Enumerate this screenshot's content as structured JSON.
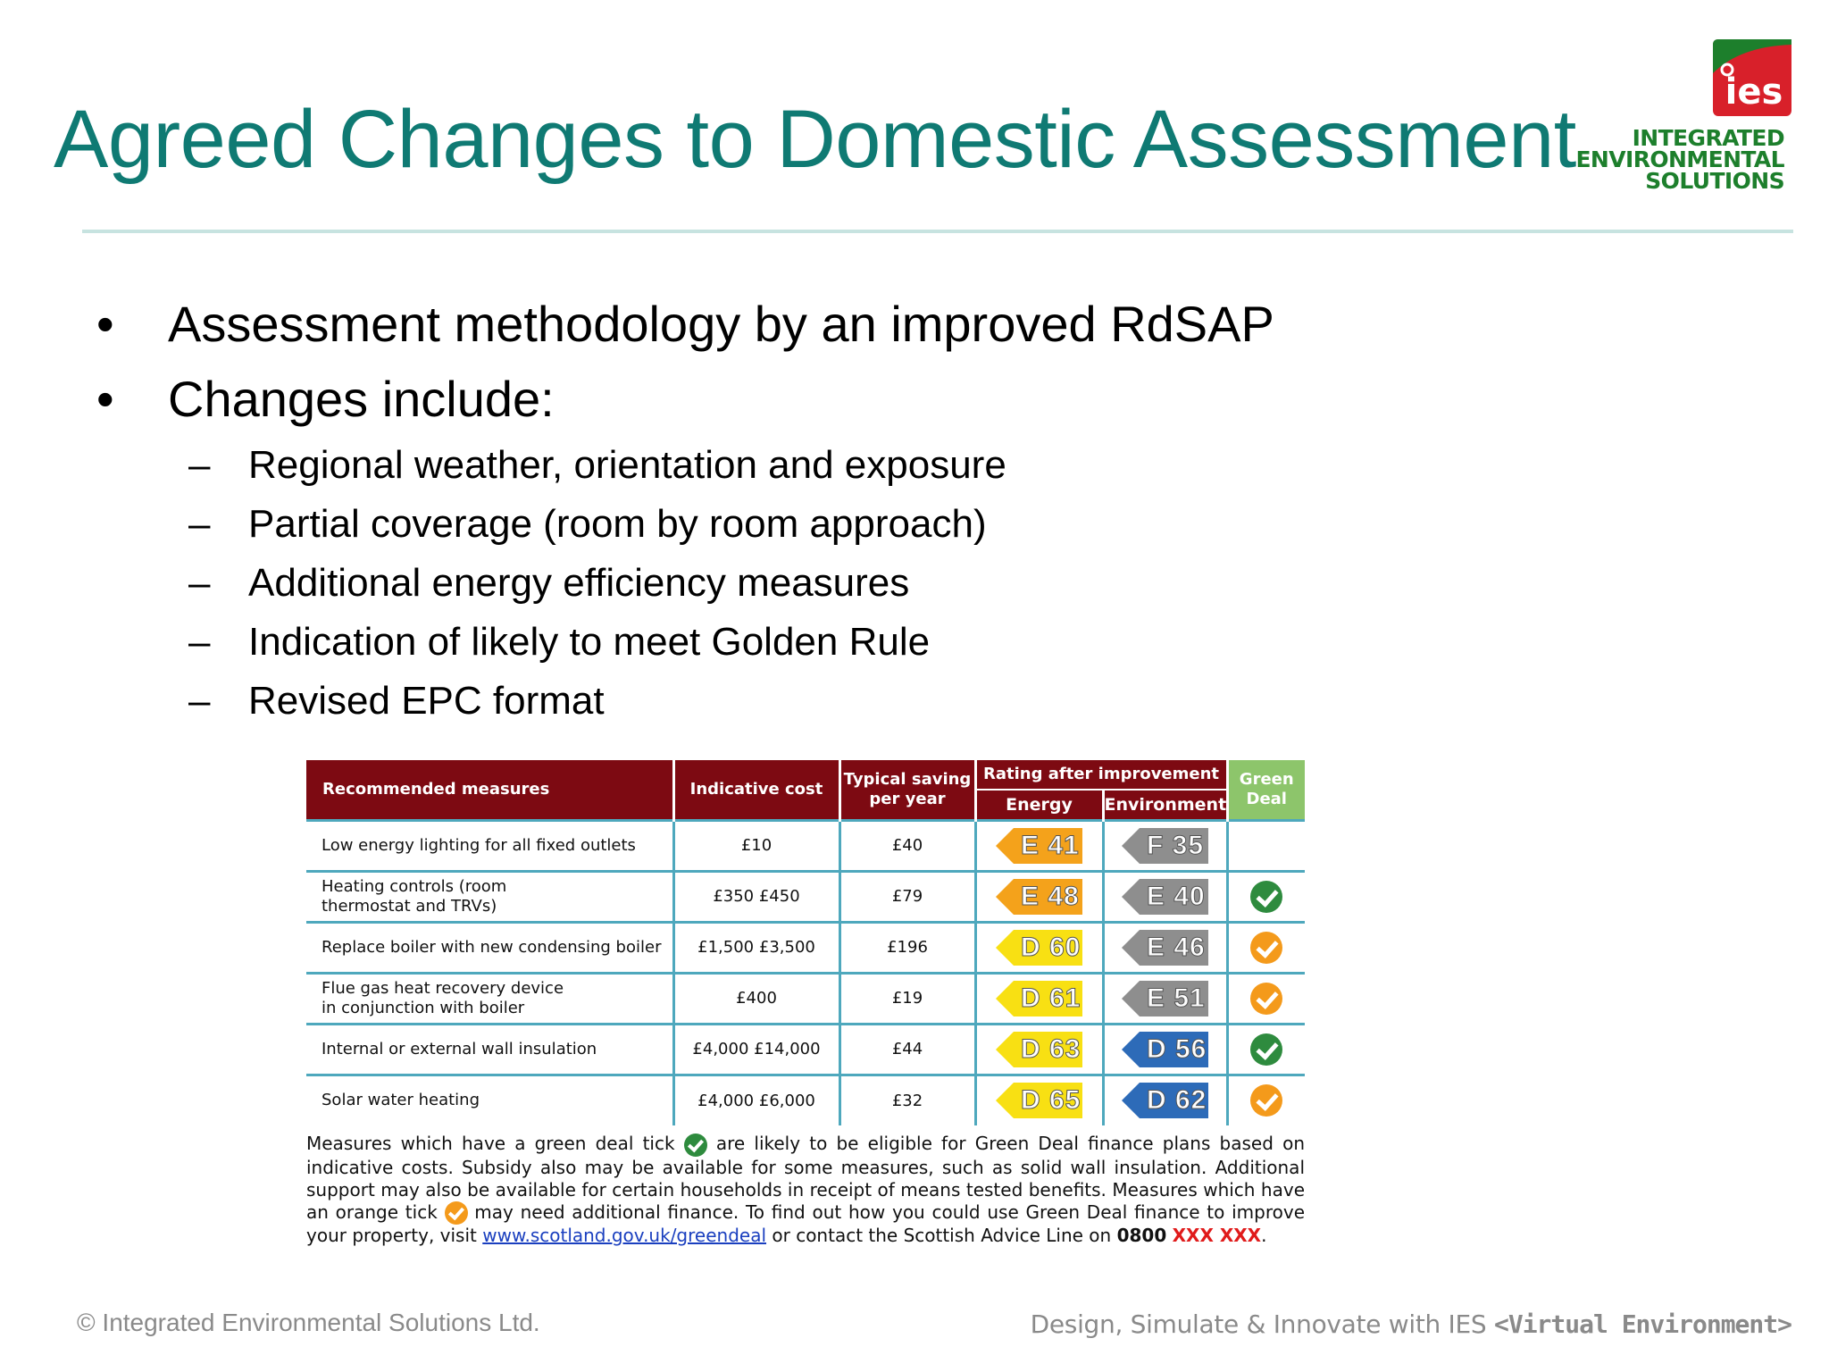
{
  "slide": {
    "title": "Agreed Changes to Domestic Assessment",
    "bullets": [
      "Assessment methodology by an improved RdSAP",
      "Changes include:"
    ],
    "sub_bullets": [
      "Regional weather, orientation and exposure",
      "Partial coverage (room by room approach)",
      "Additional energy efficiency measures",
      "Indication of likely to meet Golden Rule",
      "Revised EPC format"
    ],
    "bullet_glyph": "•",
    "dash_glyph": "–"
  },
  "logo": {
    "mark_text": "ies",
    "line1": "INTEGRATED",
    "line2": "ENVIRONMENTAL",
    "line3": "SOLUTIONS",
    "colors": {
      "red": "#d8202a",
      "green": "#1d7f2c"
    }
  },
  "epc_table": {
    "headers": {
      "measures": "Recommended measures",
      "cost": "Indicative cost",
      "saving_line1": "Typical saving",
      "saving_line2": "per year",
      "rating": "Rating after improvement",
      "energy": "Energy",
      "environment": "Environment",
      "green_line1": "Green",
      "green_line2": "Deal"
    },
    "rows": [
      {
        "measure_line1": "Low energy lighting for all fixed outlets",
        "measure_line2": "",
        "cost": "£10",
        "saving": "£40",
        "energy": "E 41",
        "energy_color": "orange",
        "environment": "F 35",
        "environment_color": "grey",
        "green_deal": "none"
      },
      {
        "measure_line1": "Heating controls (room",
        "measure_line2": "thermostat and TRVs)",
        "cost": "£350  £450",
        "saving": "£79",
        "energy": "E 48",
        "energy_color": "orange",
        "environment": "E 40",
        "environment_color": "grey",
        "green_deal": "green"
      },
      {
        "measure_line1": "Replace boiler with new condensing boiler",
        "measure_line2": "",
        "cost": "£1,500  £3,500",
        "saving": "£196",
        "energy": "D 60",
        "energy_color": "yellow",
        "environment": "E 46",
        "environment_color": "grey",
        "green_deal": "orange"
      },
      {
        "measure_line1": "Flue gas heat recovery device",
        "measure_line2": "in conjunction with boiler",
        "cost": "£400",
        "saving": "£19",
        "energy": "D 61",
        "energy_color": "yellow",
        "environment": "E 51",
        "environment_color": "grey",
        "green_deal": "orange"
      },
      {
        "measure_line1": "Internal or external wall insulation",
        "measure_line2": "",
        "cost": "£4,000  £14,000",
        "saving": "£44",
        "energy": "D 63",
        "energy_color": "yellow",
        "environment": "D 56",
        "environment_color": "blue",
        "green_deal": "green"
      },
      {
        "measure_line1": "Solar water heating",
        "measure_line2": "",
        "cost": "£4,000  £6,000",
        "saving": "£32",
        "energy": "D 65",
        "energy_color": "yellow",
        "environment": "D 62",
        "environment_color": "blue",
        "green_deal": "orange"
      }
    ],
    "note": {
      "part1": "Measures which have a green deal tick",
      "part2": "are likely to be eligible for Green Deal finance plans based on indicative costs. Subsidy also may be available for some measures, such as solid wall insulation. Additional support may also be available for certain households in receipt of means tested benefits. Measures which have an orange tick",
      "part3": "may need additional finance. To find out how you could use Green Deal finance to improve your property, visit",
      "link": "www.scotland.gov.uk/greendeal",
      "part4": "or contact the Scottish Advice Line on",
      "phone": "0800",
      "phone_red": "XXX XXX",
      "end": "."
    },
    "colors": {
      "header": "#7d0a12",
      "green_header": "#8dc56b",
      "row_lines": "#4ea8bd"
    }
  },
  "footer": {
    "copyright": "© Integrated Environmental Solutions Ltd.",
    "tagline": "Design, Simulate & Innovate with IES",
    "tagline_brand": "<Virtual Environment>"
  },
  "theme": {
    "title_color": "#0f7a73"
  }
}
